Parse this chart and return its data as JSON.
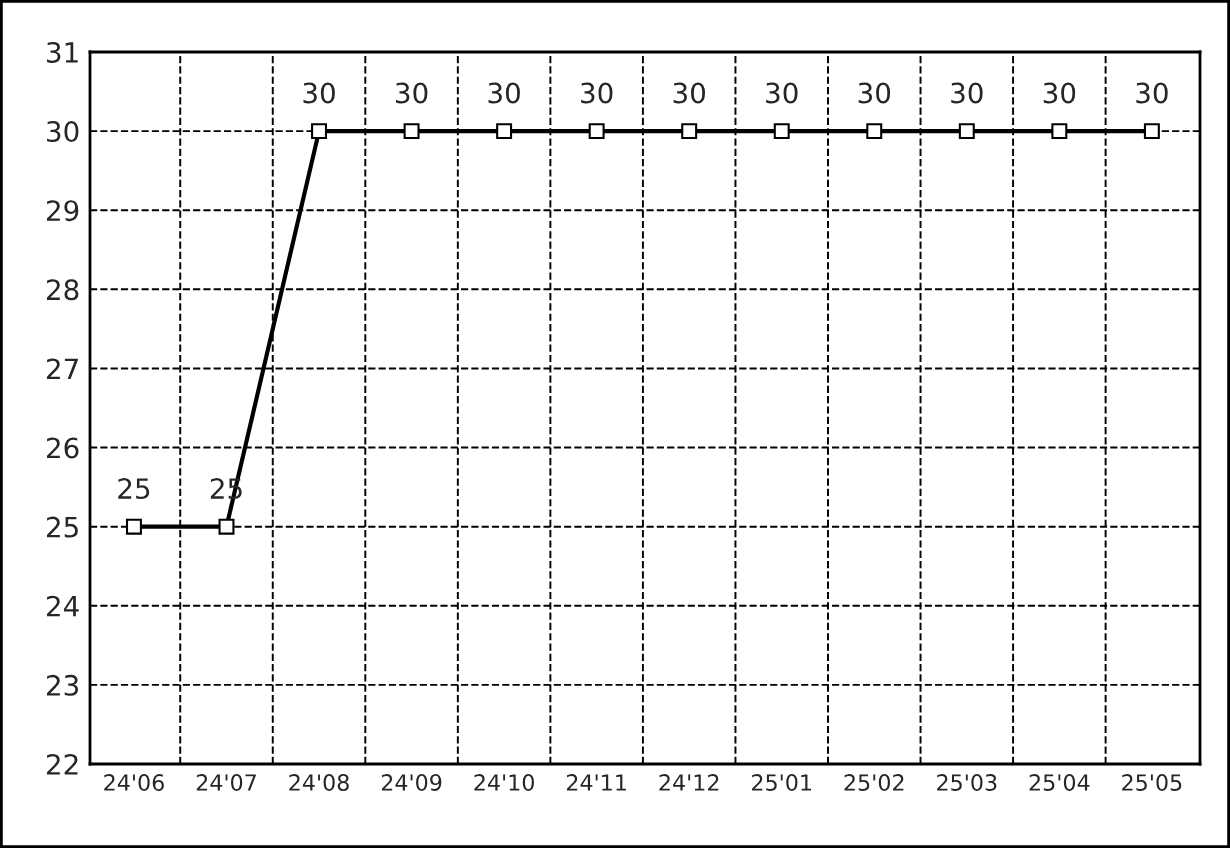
{
  "chart_data": {
    "type": "line",
    "categories": [
      "24'06",
      "24'07",
      "24'08",
      "24'09",
      "24'10",
      "24'11",
      "24'12",
      "25'01",
      "25'02",
      "25'03",
      "25'04",
      "25'05"
    ],
    "values": [
      25,
      25,
      30,
      30,
      30,
      30,
      30,
      30,
      30,
      30,
      30,
      30
    ],
    "color": "#000000",
    "marker": "square",
    "line_style": "solid",
    "data_labels": true,
    "ylim": [
      22,
      31
    ],
    "yticks": [
      22,
      23,
      24,
      25,
      26,
      27,
      28,
      29,
      30,
      31
    ],
    "grid": true,
    "legend": false
  }
}
